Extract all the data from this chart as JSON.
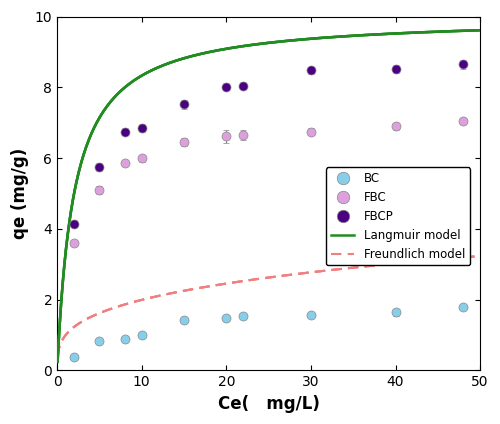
{
  "BC_x": [
    2,
    5,
    8,
    10,
    15,
    20,
    22,
    30,
    40,
    48
  ],
  "BC_y": [
    0.38,
    0.82,
    0.88,
    1.0,
    1.42,
    1.48,
    1.55,
    1.57,
    1.65,
    1.78
  ],
  "BC_yerr": [
    0.03,
    0.05,
    0.04,
    0.04,
    0.08,
    0.06,
    0.06,
    0.05,
    0.1,
    0.05
  ],
  "FBC_x": [
    2,
    5,
    8,
    10,
    15,
    20,
    22,
    30,
    40,
    48
  ],
  "FBC_y": [
    3.6,
    5.1,
    5.85,
    6.0,
    6.45,
    6.62,
    6.65,
    6.75,
    6.9,
    7.05
  ],
  "FBC_yerr": [
    0.08,
    0.1,
    0.08,
    0.1,
    0.12,
    0.18,
    0.15,
    0.1,
    0.1,
    0.08
  ],
  "FBCP_x": [
    2,
    5,
    8,
    10,
    15,
    20,
    22,
    30,
    40,
    48
  ],
  "FBCP_y": [
    4.15,
    5.75,
    6.75,
    6.85,
    7.52,
    8.02,
    8.05,
    8.48,
    8.52,
    8.65
  ],
  "FBCP_yerr": [
    0.1,
    0.1,
    0.1,
    0.12,
    0.12,
    0.1,
    0.1,
    0.1,
    0.1,
    0.12
  ],
  "BC_color": "#87CEEB",
  "FBC_color": "#DDA0DD",
  "FBCP_color": "#4B0082",
  "langmuir_color": "#228B22",
  "freundlich_color": "#F08080",
  "xlim": [
    0,
    50
  ],
  "ylim": [
    0,
    10
  ],
  "xlabel": "Ce(   mg/L)",
  "ylabel": "qe (mg/g)"
}
